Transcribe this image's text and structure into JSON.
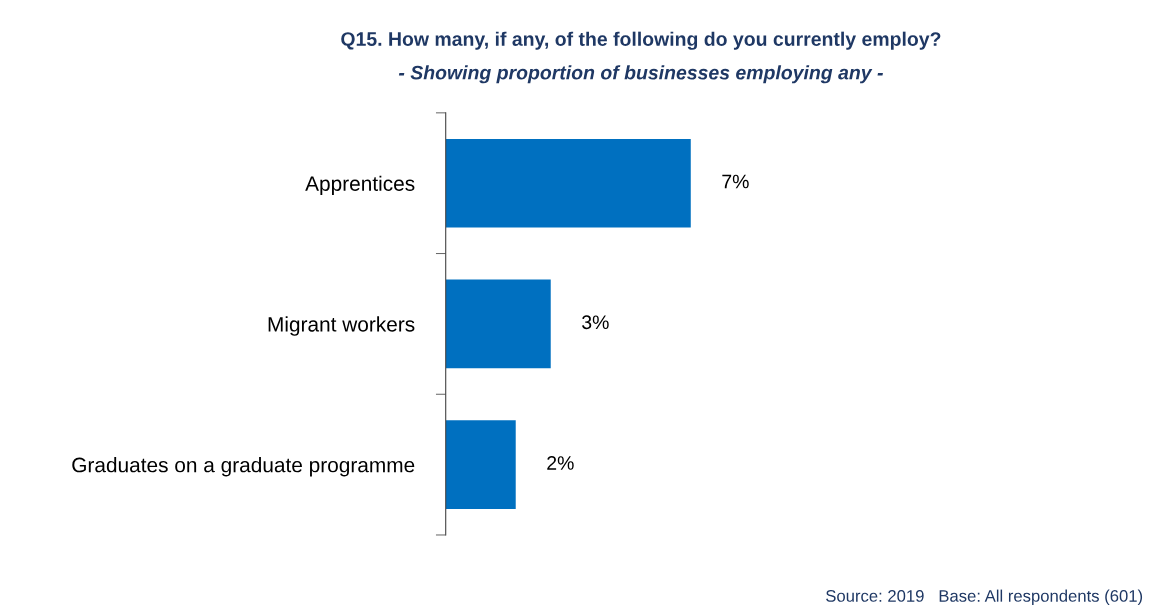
{
  "chart_data": {
    "type": "bar",
    "orientation": "horizontal",
    "title": "Q15. How many, if any, of the following do you currently employ?",
    "subtitle": "- Showing proportion of businesses employing any -",
    "categories": [
      "Apprentices",
      "Migrant workers",
      "Graduates on a graduate programme"
    ],
    "values": [
      7,
      3,
      2
    ],
    "value_labels": [
      "7%",
      "3%",
      "2%"
    ],
    "color": "#0070c0",
    "tick_labels": "y",
    "grid": false,
    "legend": false,
    "annotations": [
      "Source: 2019   Base: All respondents (601)"
    ]
  }
}
